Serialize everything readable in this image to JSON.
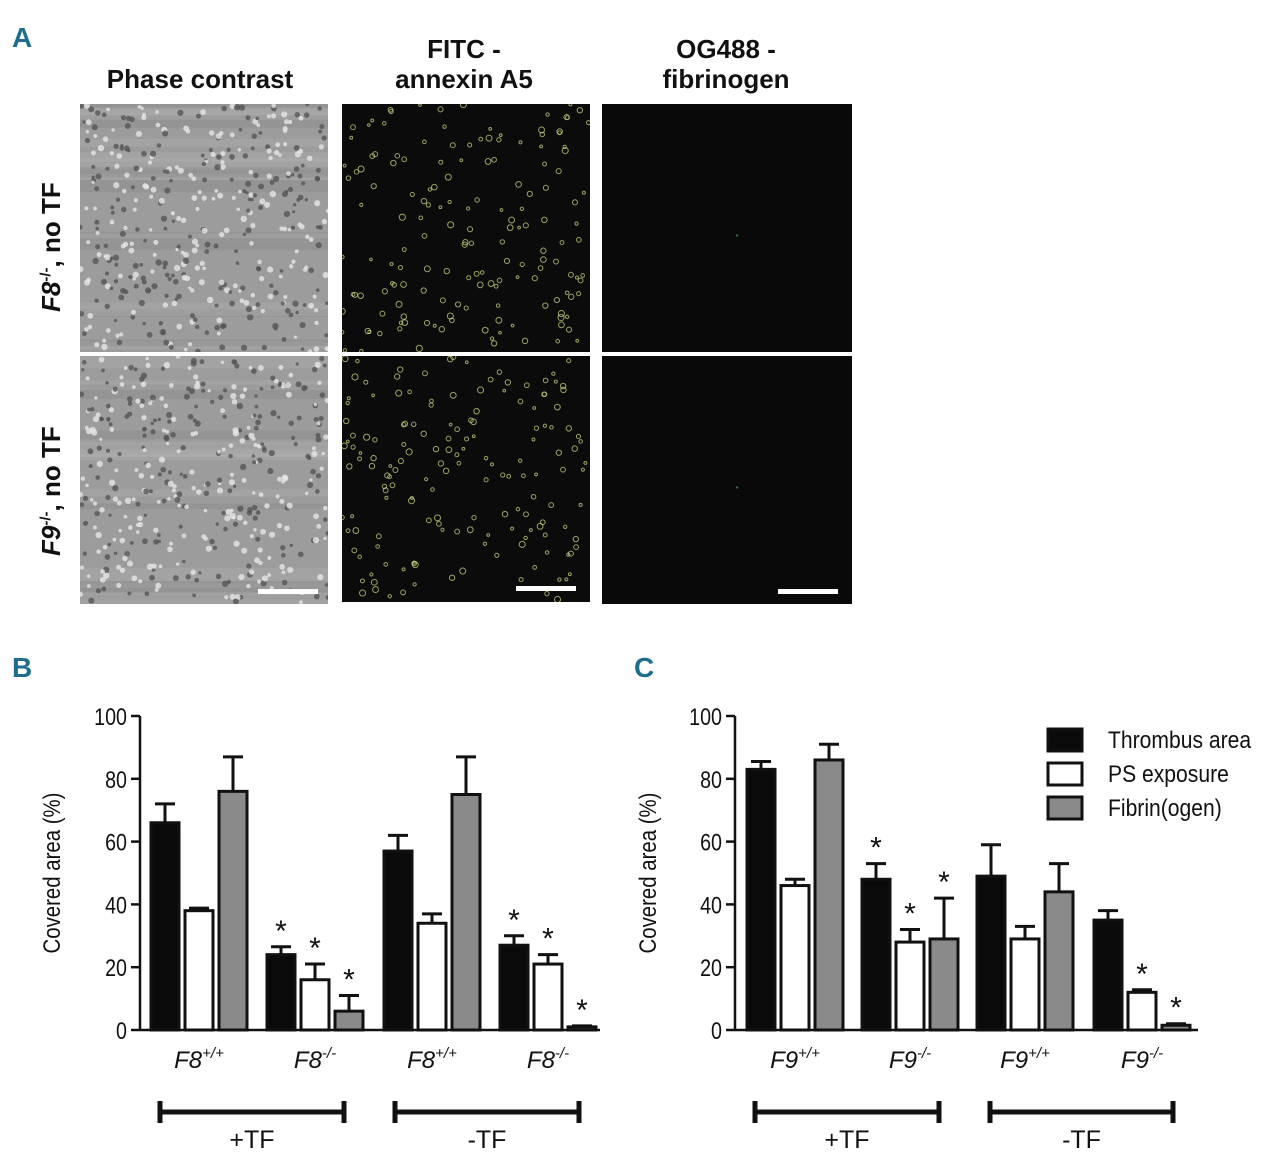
{
  "figure": {
    "panel_a_letter": "A",
    "panel_b_letter": "B",
    "panel_c_letter": "C",
    "columns": {
      "phase": {
        "line1": "Phase contrast"
      },
      "fitc": {
        "line1": "FITC -",
        "line2": "annexin  A5"
      },
      "og488": {
        "line1": "OG488 -",
        "line2": "fibrinogen"
      }
    },
    "rows": {
      "f8": {
        "gene": "F8",
        "sup": "-/-",
        "rest": ", no TF"
      },
      "f9": {
        "gene": "F9",
        "sup": "-/-",
        "rest": ", no TF"
      }
    }
  },
  "colors": {
    "thrombus": "#0a0a0a",
    "ps": "#ffffff",
    "fibrin": "#8a8a8a",
    "panel_letter": "#1c6e8c",
    "fitc_cells": "#c9d87a"
  },
  "chart_data": [
    {
      "panel": "B",
      "type": "bar",
      "ylabel": "Covered area (%)",
      "ylim": [
        0,
        100
      ],
      "yticks": [
        0,
        20,
        40,
        60,
        80,
        100
      ],
      "categories": [
        {
          "gene": "F8",
          "sup": "+/+"
        },
        {
          "gene": "F8",
          "sup": "-/-"
        },
        {
          "gene": "F8",
          "sup": "+/+"
        },
        {
          "gene": "F8",
          "sup": "-/-"
        }
      ],
      "series": [
        {
          "name": "Thrombus area",
          "color": "#0a0a0a",
          "values": [
            66,
            24,
            57,
            27
          ],
          "errors": [
            6,
            2.5,
            5,
            3
          ],
          "significant": [
            false,
            true,
            false,
            true
          ]
        },
        {
          "name": "PS exposure",
          "color": "#ffffff",
          "values": [
            38,
            16,
            34,
            21
          ],
          "errors": [
            0.8,
            5,
            3,
            3
          ],
          "significant": [
            false,
            true,
            false,
            true
          ]
        },
        {
          "name": "Fibrin(ogen)",
          "color": "#8a8a8a",
          "values": [
            76,
            6,
            75,
            1
          ],
          "errors": [
            11,
            5,
            12,
            0.3
          ],
          "significant": [
            false,
            true,
            false,
            true
          ]
        }
      ],
      "groups": [
        {
          "label": "+TF",
          "categories": [
            0,
            1
          ]
        },
        {
          "label": "-TF",
          "categories": [
            2,
            3
          ]
        }
      ],
      "significance_marker": "*",
      "legend": false
    },
    {
      "panel": "C",
      "type": "bar",
      "ylabel": "Covered area (%)",
      "ylim": [
        0,
        100
      ],
      "yticks": [
        0,
        20,
        40,
        60,
        80,
        100
      ],
      "categories": [
        {
          "gene": "F9",
          "sup": "+/+"
        },
        {
          "gene": "F9",
          "sup": "-/-"
        },
        {
          "gene": "F9",
          "sup": "+/+"
        },
        {
          "gene": "F9",
          "sup": "-/-"
        }
      ],
      "series": [
        {
          "name": "Thrombus area",
          "color": "#0a0a0a",
          "values": [
            83,
            48,
            49,
            35
          ],
          "errors": [
            2.5,
            5,
            10,
            3
          ],
          "significant": [
            false,
            true,
            false,
            false
          ]
        },
        {
          "name": "PS exposure",
          "color": "#ffffff",
          "values": [
            46,
            28,
            29,
            12
          ],
          "errors": [
            2,
            4,
            4,
            0.8
          ],
          "significant": [
            false,
            true,
            false,
            true
          ]
        },
        {
          "name": "Fibrin(ogen)",
          "color": "#8a8a8a",
          "values": [
            86,
            29,
            44,
            1.5
          ],
          "errors": [
            5,
            13,
            9,
            0.5
          ],
          "significant": [
            false,
            true,
            false,
            true
          ]
        }
      ],
      "groups": [
        {
          "label": "+TF",
          "categories": [
            0,
            1
          ]
        },
        {
          "label": "-TF",
          "categories": [
            2,
            3
          ]
        }
      ],
      "significance_marker": "*",
      "legend": "top-right"
    }
  ]
}
